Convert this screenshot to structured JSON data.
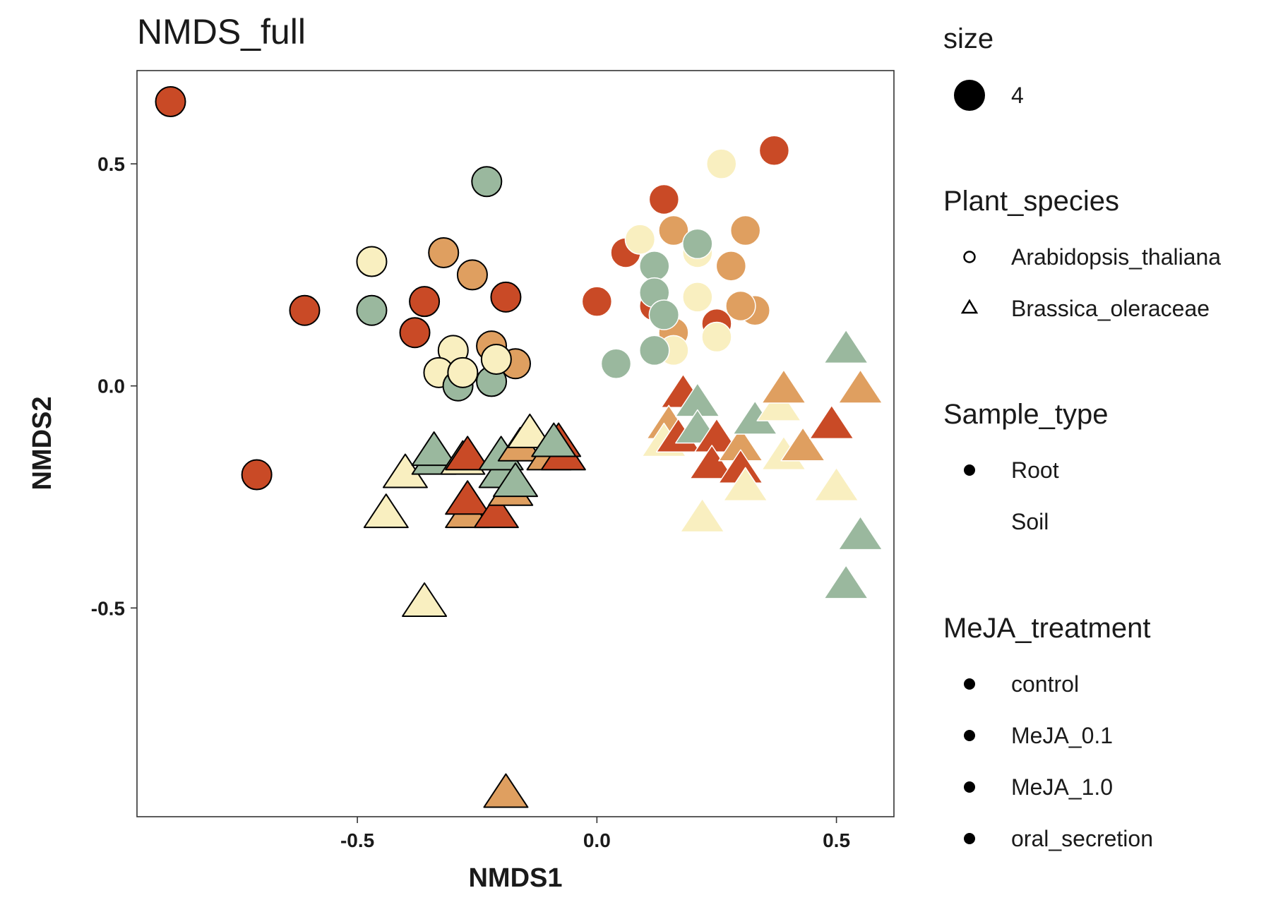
{
  "chart_data": {
    "type": "scatter",
    "title": "NMDS_full",
    "xlabel": "NMDS1",
    "ylabel": "NMDS2",
    "xlim": [
      -0.96,
      0.62
    ],
    "ylim": [
      -0.97,
      0.71
    ],
    "xticks": [
      {
        "value": -0.5,
        "label": "-0.5"
      },
      {
        "value": 0.0,
        "label": "0.0"
      },
      {
        "value": 0.5,
        "label": "0.5"
      }
    ],
    "yticks": [
      {
        "value": 0.5,
        "label": "0.5"
      },
      {
        "value": 0.0,
        "label": "0.0"
      },
      {
        "value": -0.5,
        "label": "-0.5"
      }
    ],
    "grid": false,
    "legend_position": "right",
    "colors": {
      "control": "#c94a26",
      "MeJA_0.1": "#df9f60",
      "MeJA_1.0": "#f9efc0",
      "oral_secretion": "#9ab89e"
    },
    "legend": {
      "size": {
        "title": "size",
        "items": [
          {
            "label": "4"
          }
        ]
      },
      "plant_species": {
        "title": "Plant_species",
        "items": [
          {
            "label": "Arabidopsis_thaliana",
            "shape": "circle"
          },
          {
            "label": "Brassica_oleraceae",
            "shape": "triangle"
          }
        ]
      },
      "sample_type": {
        "title": "Sample_type",
        "items": [
          {
            "label": "Root"
          },
          {
            "label": "Soil"
          }
        ]
      },
      "treatment": {
        "title": "MeJA_treatment",
        "items": [
          {
            "label": "control"
          },
          {
            "label": "MeJA_0.1"
          },
          {
            "label": "MeJA_1.0"
          },
          {
            "label": "oral_secretion"
          }
        ]
      }
    },
    "series": [
      {
        "name": "Arabidopsis_thaliana Root",
        "points": [
          [
            -0.89,
            0.64,
            "control"
          ],
          [
            -0.61,
            0.17,
            "control"
          ],
          [
            -0.71,
            -0.2,
            "control"
          ],
          [
            -0.36,
            0.19,
            "control"
          ],
          [
            -0.38,
            0.12,
            "control"
          ],
          [
            -0.19,
            0.2,
            "control"
          ],
          [
            -0.47,
            0.28,
            "MeJA_1.0"
          ],
          [
            -0.47,
            0.17,
            "oral_secretion"
          ],
          [
            -0.32,
            0.3,
            "MeJA_0.1"
          ],
          [
            -0.26,
            0.25,
            "MeJA_0.1"
          ],
          [
            -0.23,
            0.46,
            "oral_secretion"
          ],
          [
            -0.3,
            0.08,
            "MeJA_1.0"
          ],
          [
            -0.33,
            0.03,
            "MeJA_1.0"
          ],
          [
            -0.29,
            0.0,
            "oral_secretion"
          ],
          [
            -0.28,
            0.03,
            "MeJA_1.0"
          ],
          [
            -0.22,
            0.01,
            "oral_secretion"
          ],
          [
            -0.22,
            0.09,
            "MeJA_0.1"
          ],
          [
            -0.17,
            0.05,
            "MeJA_0.1"
          ],
          [
            -0.21,
            0.06,
            "MeJA_1.0"
          ]
        ]
      },
      {
        "name": "Arabidopsis_thaliana Soil",
        "points": [
          [
            0.37,
            0.53,
            "control"
          ],
          [
            0.26,
            0.5,
            "MeJA_1.0"
          ],
          [
            0.14,
            0.42,
            "control"
          ],
          [
            0.06,
            0.3,
            "control"
          ],
          [
            0.0,
            0.19,
            "control"
          ],
          [
            0.12,
            0.18,
            "control"
          ],
          [
            0.25,
            0.14,
            "control"
          ],
          [
            0.31,
            0.35,
            "MeJA_0.1"
          ],
          [
            0.16,
            0.35,
            "MeJA_0.1"
          ],
          [
            0.28,
            0.27,
            "MeJA_0.1"
          ],
          [
            0.33,
            0.17,
            "MeJA_0.1"
          ],
          [
            0.3,
            0.18,
            "MeJA_0.1"
          ],
          [
            0.16,
            0.12,
            "MeJA_0.1"
          ],
          [
            0.09,
            0.33,
            "MeJA_1.0"
          ],
          [
            0.21,
            0.3,
            "MeJA_1.0"
          ],
          [
            0.21,
            0.2,
            "MeJA_1.0"
          ],
          [
            0.25,
            0.11,
            "MeJA_1.0"
          ],
          [
            0.16,
            0.08,
            "MeJA_1.0"
          ],
          [
            0.21,
            0.32,
            "oral_secretion"
          ],
          [
            0.12,
            0.27,
            "oral_secretion"
          ],
          [
            0.12,
            0.21,
            "oral_secretion"
          ],
          [
            0.14,
            0.16,
            "oral_secretion"
          ],
          [
            0.12,
            0.08,
            "oral_secretion"
          ],
          [
            0.04,
            0.05,
            "oral_secretion"
          ]
        ]
      },
      {
        "name": "Brassica_oleraceae Root",
        "points": [
          [
            -0.44,
            -0.29,
            "MeJA_1.0"
          ],
          [
            -0.4,
            -0.2,
            "MeJA_1.0"
          ],
          [
            -0.36,
            -0.49,
            "MeJA_1.0"
          ],
          [
            -0.34,
            -0.17,
            "oral_secretion"
          ],
          [
            -0.34,
            -0.15,
            "oral_secretion"
          ],
          [
            -0.28,
            -0.17,
            "MeJA_1.0"
          ],
          [
            -0.27,
            -0.16,
            "control"
          ],
          [
            -0.27,
            -0.29,
            "MeJA_0.1"
          ],
          [
            -0.27,
            -0.26,
            "control"
          ],
          [
            -0.21,
            -0.29,
            "control"
          ],
          [
            -0.2,
            -0.2,
            "oral_secretion"
          ],
          [
            -0.2,
            -0.16,
            "oral_secretion"
          ],
          [
            -0.18,
            -0.24,
            "MeJA_0.1"
          ],
          [
            -0.19,
            -0.92,
            "MeJA_0.1"
          ],
          [
            -0.17,
            -0.22,
            "oral_secretion"
          ],
          [
            -0.16,
            -0.14,
            "MeJA_0.1"
          ],
          [
            -0.14,
            -0.11,
            "MeJA_1.0"
          ],
          [
            -0.1,
            -0.16,
            "MeJA_0.1"
          ],
          [
            -0.07,
            -0.16,
            "control"
          ],
          [
            -0.08,
            -0.13,
            "control"
          ],
          [
            -0.09,
            -0.13,
            "oral_secretion"
          ]
        ]
      },
      {
        "name": "Brassica_oleraceae Soil",
        "points": [
          [
            0.18,
            -0.02,
            "control"
          ],
          [
            0.15,
            -0.09,
            "MeJA_0.1"
          ],
          [
            0.14,
            -0.13,
            "MeJA_1.0"
          ],
          [
            0.17,
            -0.12,
            "control"
          ],
          [
            0.21,
            -0.04,
            "oral_secretion"
          ],
          [
            0.21,
            -0.1,
            "oral_secretion"
          ],
          [
            0.25,
            -0.12,
            "control"
          ],
          [
            0.24,
            -0.18,
            "control"
          ],
          [
            0.3,
            -0.14,
            "MeJA_0.1"
          ],
          [
            0.3,
            -0.19,
            "control"
          ],
          [
            0.31,
            -0.23,
            "MeJA_1.0"
          ],
          [
            0.33,
            -0.08,
            "oral_secretion"
          ],
          [
            0.38,
            -0.05,
            "MeJA_1.0"
          ],
          [
            0.39,
            -0.01,
            "MeJA_0.1"
          ],
          [
            0.39,
            -0.16,
            "MeJA_1.0"
          ],
          [
            0.43,
            -0.14,
            "MeJA_0.1"
          ],
          [
            0.49,
            -0.09,
            "control"
          ],
          [
            0.5,
            -0.23,
            "MeJA_1.0"
          ],
          [
            0.52,
            0.08,
            "oral_secretion"
          ],
          [
            0.55,
            -0.01,
            "MeJA_0.1"
          ],
          [
            0.55,
            -0.34,
            "oral_secretion"
          ],
          [
            0.52,
            -0.45,
            "oral_secretion"
          ],
          [
            0.22,
            -0.3,
            "MeJA_1.0"
          ]
        ]
      }
    ]
  }
}
